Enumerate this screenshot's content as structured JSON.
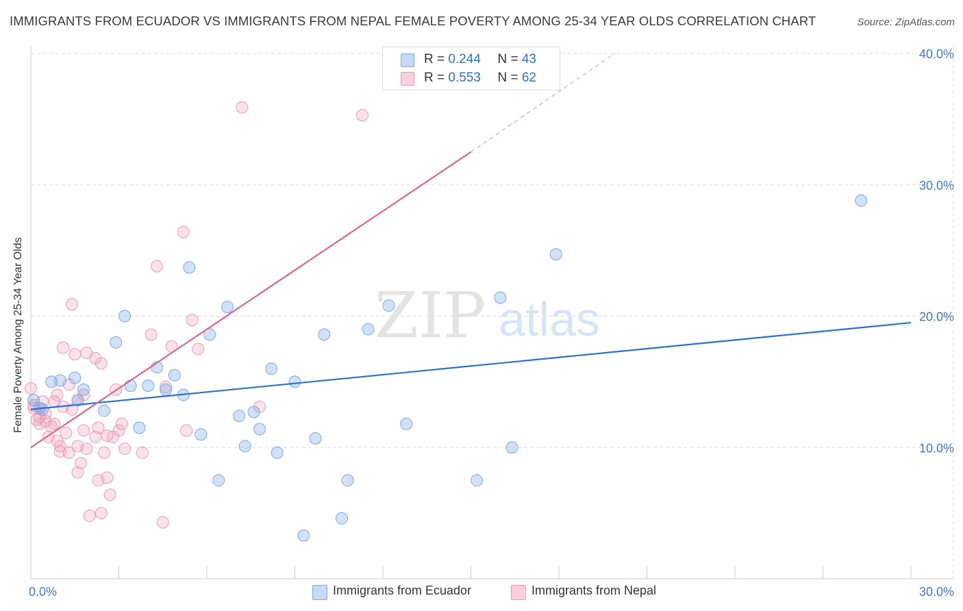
{
  "title": "IMMIGRANTS FROM ECUADOR VS IMMIGRANTS FROM NEPAL FEMALE POVERTY AMONG 25-34 YEAR OLDS CORRELATION CHART",
  "source": "Source: ZipAtlas.com",
  "watermark": {
    "zip": "ZIP",
    "atlas": "atlas"
  },
  "legend": {
    "ecuador": {
      "r_label": "R = ",
      "r_value": "0.244",
      "n_label": "N = ",
      "n_value": "43"
    },
    "nepal": {
      "r_label": "R = ",
      "r_value": "0.553",
      "n_label": "N = ",
      "n_value": "62"
    }
  },
  "bottom_legend": {
    "ecuador": "Immigrants from Ecuador",
    "nepal": "Immigrants from Nepal"
  },
  "chart_data": {
    "type": "scatter",
    "title": "IMMIGRANTS FROM ECUADOR VS IMMIGRANTS FROM NEPAL FEMALE POVERTY AMONG 25-34 YEAR OLDS CORRELATION CHART",
    "xlabel": "",
    "ylabel": "Female Poverty Among 25-34 Year Olds",
    "xlim": [
      0,
      30
    ],
    "ylim": [
      0,
      40
    ],
    "x_tick_labels": [
      {
        "value": 0,
        "label": "0.0%"
      },
      {
        "value": 30,
        "label": "30.0%"
      }
    ],
    "y_tick_labels": [
      {
        "value": 10,
        "label": "10.0%"
      },
      {
        "value": 20,
        "label": "20.0%"
      },
      {
        "value": 30,
        "label": "30.0%"
      },
      {
        "value": 40,
        "label": "40.0%"
      }
    ],
    "colors": {
      "ecuador": "#6fa3e6",
      "ecuador_line": "#2a6fd1",
      "nepal": "#f09ab8",
      "nepal_line": "#e0628d"
    },
    "series": [
      {
        "name": "Immigrants from Ecuador",
        "key": "ecuador",
        "r": 0.244,
        "n": 43,
        "trend": {
          "x1": 0,
          "y1": 12.9,
          "x2": 30,
          "y2": 19.5
        },
        "points": [
          [
            0.1,
            13.6
          ],
          [
            0.3,
            13.0
          ],
          [
            0.4,
            12.9
          ],
          [
            0.7,
            15.0
          ],
          [
            1.0,
            15.1
          ],
          [
            1.5,
            15.3
          ],
          [
            1.6,
            13.6
          ],
          [
            1.8,
            14.4
          ],
          [
            2.5,
            12.8
          ],
          [
            2.9,
            18.0
          ],
          [
            3.2,
            20.0
          ],
          [
            3.4,
            14.7
          ],
          [
            3.7,
            11.5
          ],
          [
            4.0,
            14.7
          ],
          [
            4.3,
            16.1
          ],
          [
            4.6,
            14.4
          ],
          [
            4.9,
            15.5
          ],
          [
            5.2,
            14.0
          ],
          [
            5.4,
            23.7
          ],
          [
            5.8,
            11.0
          ],
          [
            6.1,
            18.6
          ],
          [
            6.4,
            7.5
          ],
          [
            6.7,
            20.7
          ],
          [
            7.1,
            12.4
          ],
          [
            7.3,
            10.1
          ],
          [
            7.6,
            12.7
          ],
          [
            7.8,
            11.4
          ],
          [
            8.2,
            16.0
          ],
          [
            8.4,
            9.6
          ],
          [
            9.0,
            15.0
          ],
          [
            9.3,
            3.3
          ],
          [
            9.7,
            10.7
          ],
          [
            10.0,
            18.6
          ],
          [
            10.6,
            4.6
          ],
          [
            10.8,
            7.5
          ],
          [
            11.5,
            19.0
          ],
          [
            12.2,
            20.8
          ],
          [
            12.8,
            11.8
          ],
          [
            15.2,
            7.5
          ],
          [
            16.0,
            21.4
          ],
          [
            16.4,
            10.0
          ],
          [
            17.9,
            24.7
          ],
          [
            28.3,
            28.8
          ]
        ]
      },
      {
        "name": "Immigrants from Nepal",
        "key": "nepal",
        "r": 0.553,
        "n": 62,
        "trend": {
          "x1": 0,
          "y1": 10.0,
          "x2": 15.0,
          "y2": 32.5,
          "dash_x2": 19.9,
          "dash_y2": 40.0
        },
        "points": [
          [
            0.0,
            14.5
          ],
          [
            0.1,
            13.2
          ],
          [
            0.2,
            12.1
          ],
          [
            0.3,
            11.8
          ],
          [
            0.3,
            12.3
          ],
          [
            0.4,
            13.5
          ],
          [
            0.5,
            12.0
          ],
          [
            0.6,
            10.8
          ],
          [
            0.7,
            11.6
          ],
          [
            0.8,
            13.5
          ],
          [
            0.8,
            11.8
          ],
          [
            0.9,
            10.5
          ],
          [
            0.9,
            14.0
          ],
          [
            1.0,
            10.1
          ],
          [
            1.0,
            9.7
          ],
          [
            1.1,
            13.1
          ],
          [
            1.1,
            17.6
          ],
          [
            1.2,
            11.1
          ],
          [
            1.3,
            9.6
          ],
          [
            1.3,
            14.8
          ],
          [
            1.4,
            12.9
          ],
          [
            1.4,
            20.9
          ],
          [
            1.5,
            17.1
          ],
          [
            1.6,
            10.1
          ],
          [
            1.6,
            13.6
          ],
          [
            1.6,
            8.1
          ],
          [
            1.7,
            8.8
          ],
          [
            1.8,
            14.0
          ],
          [
            1.8,
            11.3
          ],
          [
            1.9,
            17.2
          ],
          [
            1.9,
            9.9
          ],
          [
            2.0,
            4.8
          ],
          [
            2.2,
            10.8
          ],
          [
            2.2,
            16.8
          ],
          [
            2.3,
            11.5
          ],
          [
            2.3,
            7.5
          ],
          [
            2.4,
            5.0
          ],
          [
            2.4,
            16.4
          ],
          [
            2.5,
            9.6
          ],
          [
            2.6,
            10.9
          ],
          [
            2.6,
            7.7
          ],
          [
            2.7,
            6.4
          ],
          [
            2.8,
            10.8
          ],
          [
            2.9,
            14.4
          ],
          [
            3.0,
            11.3
          ],
          [
            3.1,
            11.8
          ],
          [
            3.2,
            9.9
          ],
          [
            3.8,
            9.6
          ],
          [
            4.1,
            18.6
          ],
          [
            4.3,
            23.8
          ],
          [
            4.5,
            4.3
          ],
          [
            4.6,
            14.6
          ],
          [
            4.8,
            17.7
          ],
          [
            5.2,
            26.4
          ],
          [
            5.3,
            11.3
          ],
          [
            5.5,
            19.7
          ],
          [
            5.7,
            17.5
          ],
          [
            7.2,
            35.9
          ],
          [
            7.8,
            13.1
          ],
          [
            11.3,
            35.3
          ],
          [
            0.1,
            13.0
          ],
          [
            0.5,
            12.6
          ]
        ]
      }
    ]
  }
}
